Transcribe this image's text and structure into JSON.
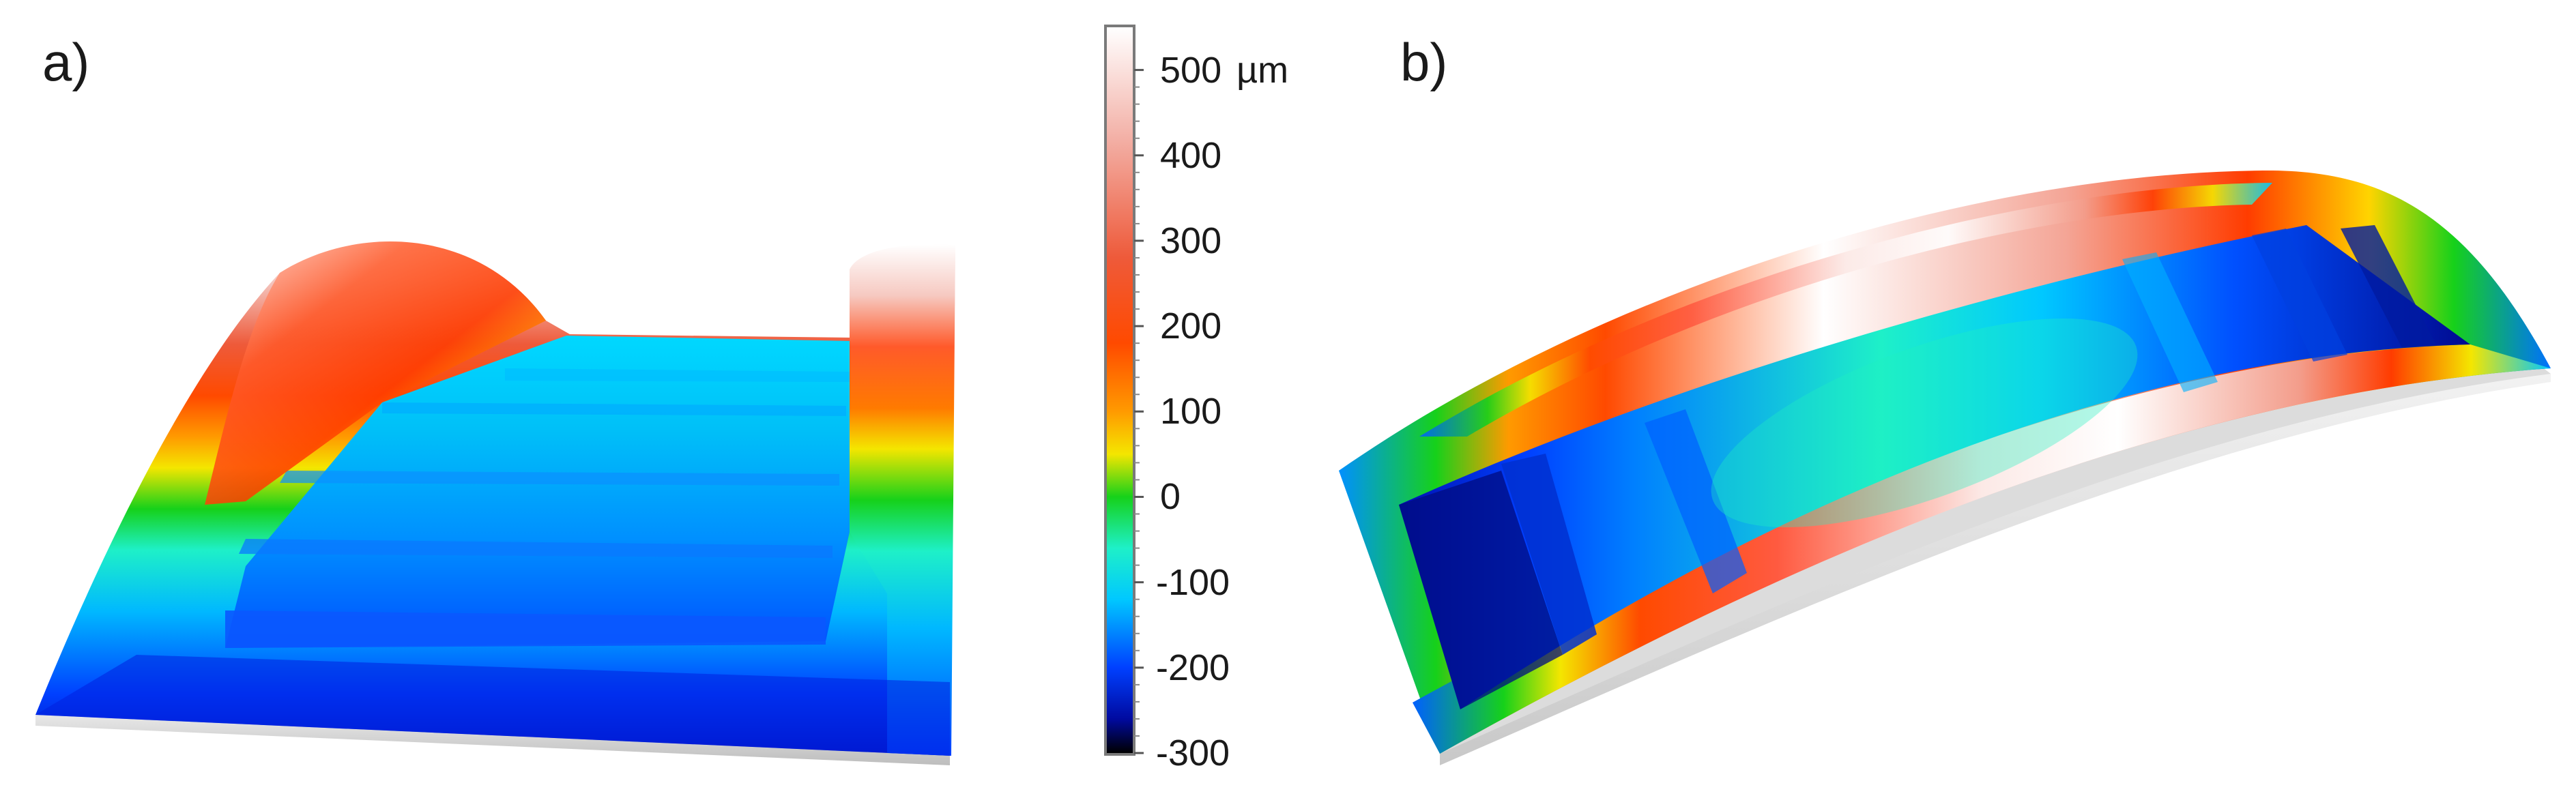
{
  "panels": {
    "a": {
      "label": "a)"
    },
    "b": {
      "label": "b)"
    }
  },
  "colorbar": {
    "unit": "µm",
    "min": -300,
    "max": 550,
    "ticks": [
      {
        "value": 500,
        "label": "500"
      },
      {
        "value": 400,
        "label": "400"
      },
      {
        "value": 300,
        "label": "300"
      },
      {
        "value": 200,
        "label": "200"
      },
      {
        "value": 100,
        "label": "100"
      },
      {
        "value": 0,
        "label": "0"
      },
      {
        "value": -100,
        "label": "-100"
      },
      {
        "value": -200,
        "label": "-200"
      },
      {
        "value": -300,
        "label": "-300"
      }
    ],
    "stops": [
      {
        "value": 550,
        "color": "#ffffff"
      },
      {
        "value": 420,
        "color": "#f3b0a6"
      },
      {
        "value": 280,
        "color": "#ee5a3a"
      },
      {
        "value": 180,
        "color": "#ff4a00"
      },
      {
        "value": 100,
        "color": "#ff9a00"
      },
      {
        "value": 50,
        "color": "#f4e600"
      },
      {
        "value": 0,
        "color": "#16d11a"
      },
      {
        "value": -60,
        "color": "#1ef0c8"
      },
      {
        "value": -120,
        "color": "#00c8ff"
      },
      {
        "value": -200,
        "color": "#0040ff"
      },
      {
        "value": -260,
        "color": "#000aa0"
      },
      {
        "value": -300,
        "color": "#000000"
      }
    ]
  }
}
